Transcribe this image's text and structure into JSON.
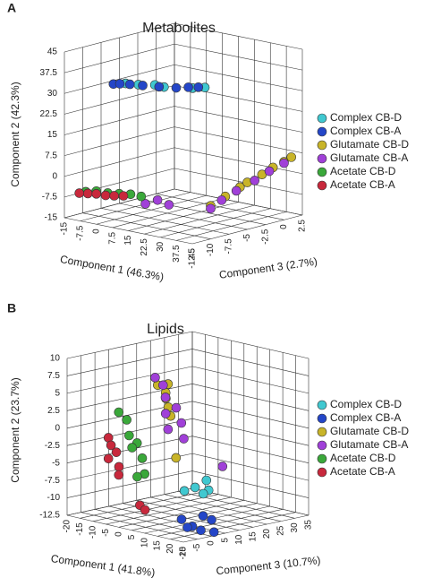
{
  "chart_data": [
    {
      "type": "scatter3d",
      "panel": "A",
      "title": "Metabolites",
      "x_label": "Component 1 (46.3%)",
      "y_label": "Component 2 (42.3%)",
      "z_label": "Component 3 (2.7%)",
      "xlim": [
        -15,
        45
      ],
      "xticks": [
        -15,
        -7.5,
        0,
        7.5,
        15,
        22.5,
        30,
        37.5,
        45
      ],
      "ylim": [
        -15,
        45
      ],
      "yticks": [
        -15,
        -7.5,
        0,
        7.5,
        15,
        22.5,
        30,
        37.5,
        45
      ],
      "zlim": [
        -12.5,
        2.5
      ],
      "zticks": [
        -12.5,
        -10,
        -7.5,
        -5,
        -2.5,
        0,
        2.5
      ],
      "grid": true,
      "series": [
        {
          "name": "Complex CB-D",
          "color": "#40c8d0",
          "x": [
            12,
            18,
            24,
            30,
            40,
            44
          ],
          "y": [
            37.5,
            38,
            38.5,
            39,
            39.5,
            40
          ],
          "z": [
            -12,
            -12,
            -11.5,
            -12,
            -11,
            -10.5
          ]
        },
        {
          "name": "Complex CB-A",
          "color": "#2446c8",
          "x": [
            8,
            10,
            14,
            20,
            27,
            34,
            38,
            42
          ],
          "y": [
            37,
            37.2,
            37.5,
            38,
            38.5,
            39,
            39.5,
            40
          ],
          "z": [
            -12.5,
            -12.2,
            -12,
            -12,
            -11.8,
            -11.5,
            -11,
            -10.8
          ]
        },
        {
          "name": "Glutamate CB-D",
          "color": "#c8b428",
          "x": [
            45,
            45,
            45,
            45,
            45,
            45,
            45,
            45
          ],
          "y": [
            -3,
            -1,
            1,
            2,
            3.5,
            5,
            6,
            7
          ],
          "z": [
            -10,
            -8,
            -6,
            -5,
            -3,
            -1.5,
            0,
            1
          ]
        },
        {
          "name": "Glutamate CB-A",
          "color": "#a040d8",
          "x": [
            45,
            45,
            45,
            45,
            45,
            45,
            23,
            28,
            33
          ],
          "y": [
            -4,
            -2,
            0,
            2,
            4,
            5.5,
            -4,
            -2,
            -3
          ],
          "z": [
            -10,
            -8.5,
            -6.5,
            -4,
            -2,
            0,
            -12.5,
            -12.3,
            -12.2
          ]
        },
        {
          "name": "Acetate CB-D",
          "color": "#3aa83a",
          "x": [
            -5,
            0,
            5,
            10,
            15,
            20
          ],
          "y": [
            -4,
            -3,
            -3,
            -2.5,
            -2,
            -2
          ],
          "z": [
            -12.5,
            -12.5,
            -12.4,
            -12.3,
            -12.2,
            -12.2
          ]
        },
        {
          "name": "Acetate CB-A",
          "color": "#c8283c",
          "x": [
            -8,
            -4,
            0,
            4,
            8,
            12
          ],
          "y": [
            -5,
            -4.5,
            -4,
            -4,
            -3.5,
            -3
          ],
          "z": [
            -12.5,
            -12.5,
            -12.5,
            -12.4,
            -12.4,
            -12.3
          ]
        }
      ]
    },
    {
      "type": "scatter3d",
      "panel": "B",
      "title": "Lipids",
      "x_label": "Component 1 (41.8%)",
      "y_label": "Component 2 (23.7%)",
      "z_label": "Component 3 (10.7%)",
      "xlim": [
        -20,
        25
      ],
      "xticks": [
        -20,
        -15,
        -10,
        -5,
        0,
        5,
        10,
        15,
        20,
        25
      ],
      "ylim": [
        -12.5,
        10
      ],
      "yticks": [
        -12.5,
        -10,
        -7.5,
        -5,
        -2.5,
        0,
        2.5,
        5,
        7.5,
        10
      ],
      "zlim": [
        -10,
        35
      ],
      "zticks": [
        -10,
        -5,
        0,
        5,
        10,
        15,
        20,
        25,
        30,
        35
      ],
      "grid": true,
      "series": [
        {
          "name": "Complex CB-D",
          "color": "#40c8d0",
          "x": [
            20,
            22,
            24,
            21,
            23
          ],
          "y": [
            -6,
            -5.5,
            -6,
            -5,
            -6.5
          ],
          "z": [
            -5,
            -3,
            0,
            2,
            -1
          ]
        },
        {
          "name": "Complex CB-A",
          "color": "#2446c8",
          "x": [
            20,
            22,
            24,
            21,
            23,
            19,
            25
          ],
          "y": [
            -10,
            -11,
            -9.5,
            -12,
            -10.5,
            -11.5,
            -12
          ],
          "z": [
            -6,
            -4,
            -2,
            0,
            2,
            -3,
            1
          ]
        },
        {
          "name": "Glutamate CB-D",
          "color": "#c8b428",
          "x": [
            14,
            16,
            18,
            15,
            17,
            19,
            20
          ],
          "y": [
            9,
            8,
            9.5,
            7,
            6,
            5,
            -1
          ],
          "z": [
            -9,
            -8,
            -9,
            -7,
            -8,
            -9,
            -8
          ]
        },
        {
          "name": "Glutamate CB-A",
          "color": "#a040d8",
          "x": [
            13,
            15,
            17,
            19,
            16,
            18,
            21,
            23,
            24
          ],
          "y": [
            10,
            9,
            7.5,
            6,
            5,
            3,
            4,
            2,
            -3
          ],
          "z": [
            -9,
            -8,
            -9,
            -7,
            -8,
            -9,
            -7,
            -8,
            5
          ]
        },
        {
          "name": "Acetate CB-D",
          "color": "#3aa83a",
          "x": [
            0,
            2,
            4,
            6,
            3,
            8,
            10,
            5
          ],
          "y": [
            4,
            3,
            1,
            0,
            -1,
            -2,
            -4,
            -5
          ],
          "z": [
            -10,
            -9,
            -10,
            -9,
            -8,
            -9,
            -10,
            -8
          ]
        },
        {
          "name": "Acetate CB-A",
          "color": "#c8283c",
          "x": [
            -4,
            -3,
            -2,
            -4,
            -1,
            0,
            6,
            8
          ],
          "y": [
            0,
            -1,
            -2,
            -3,
            -4,
            -5,
            -9,
            -9.5
          ],
          "z": [
            -10,
            -10,
            -9,
            -10,
            -9,
            -10,
            -8,
            -8
          ]
        }
      ]
    }
  ]
}
